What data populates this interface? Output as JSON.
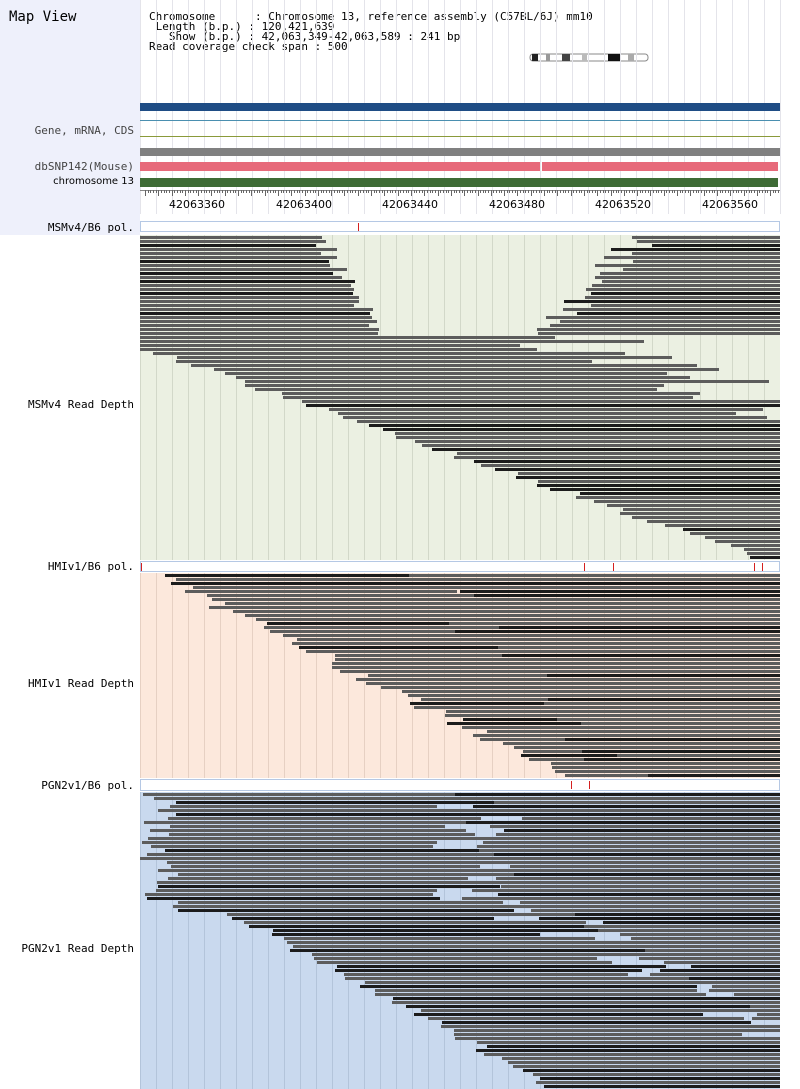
{
  "header": {
    "title": "Map View",
    "info_lines": [
      "Chromosome      : Chromosome 13, reference assembly (C57BL/6J) mm10",
      " Length (b.p.) : 120,421,639",
      "   Show (b.p.) : 42,063,349-42,063,589 : 241 bp",
      "Read coverage check span : 500"
    ]
  },
  "tracks": {
    "gene_label": "Gene, mRNA, CDS",
    "dbsnp_label": "dbSNP142(Mouse)",
    "chrom_label": "chromosome 13"
  },
  "axis": {
    "ticks": [
      "42063360",
      "42063400",
      "42063440",
      "42063480",
      "42063520",
      "42063560"
    ]
  },
  "strains": [
    {
      "pol_label": "MSMv4/B6 pol.",
      "depth_label": "MSMv4 Read Depth",
      "bg": "#ebf0e2",
      "line": "#d2d8c9"
    },
    {
      "pol_label": "HMIv1/B6 pol.",
      "depth_label": "HMIv1 Read Depth",
      "bg": "#fce8dc",
      "line": "#e6d0c3"
    },
    {
      "pol_label": "PGN2v1/B6 pol.",
      "depth_label": "PGN2v1 Read Depth",
      "bg": "#c9d9ee",
      "line": "#b3c4da"
    }
  ],
  "colors": {
    "gene_bar": "#1f4d85",
    "gray_bar": "#808080",
    "snp_bar": "#e76a7a",
    "chrom_bar": "#3e6b35",
    "read_dark": "#1c1c1c",
    "read_gray": "#5c5c5c",
    "snp_mark": "#d42020"
  }
}
